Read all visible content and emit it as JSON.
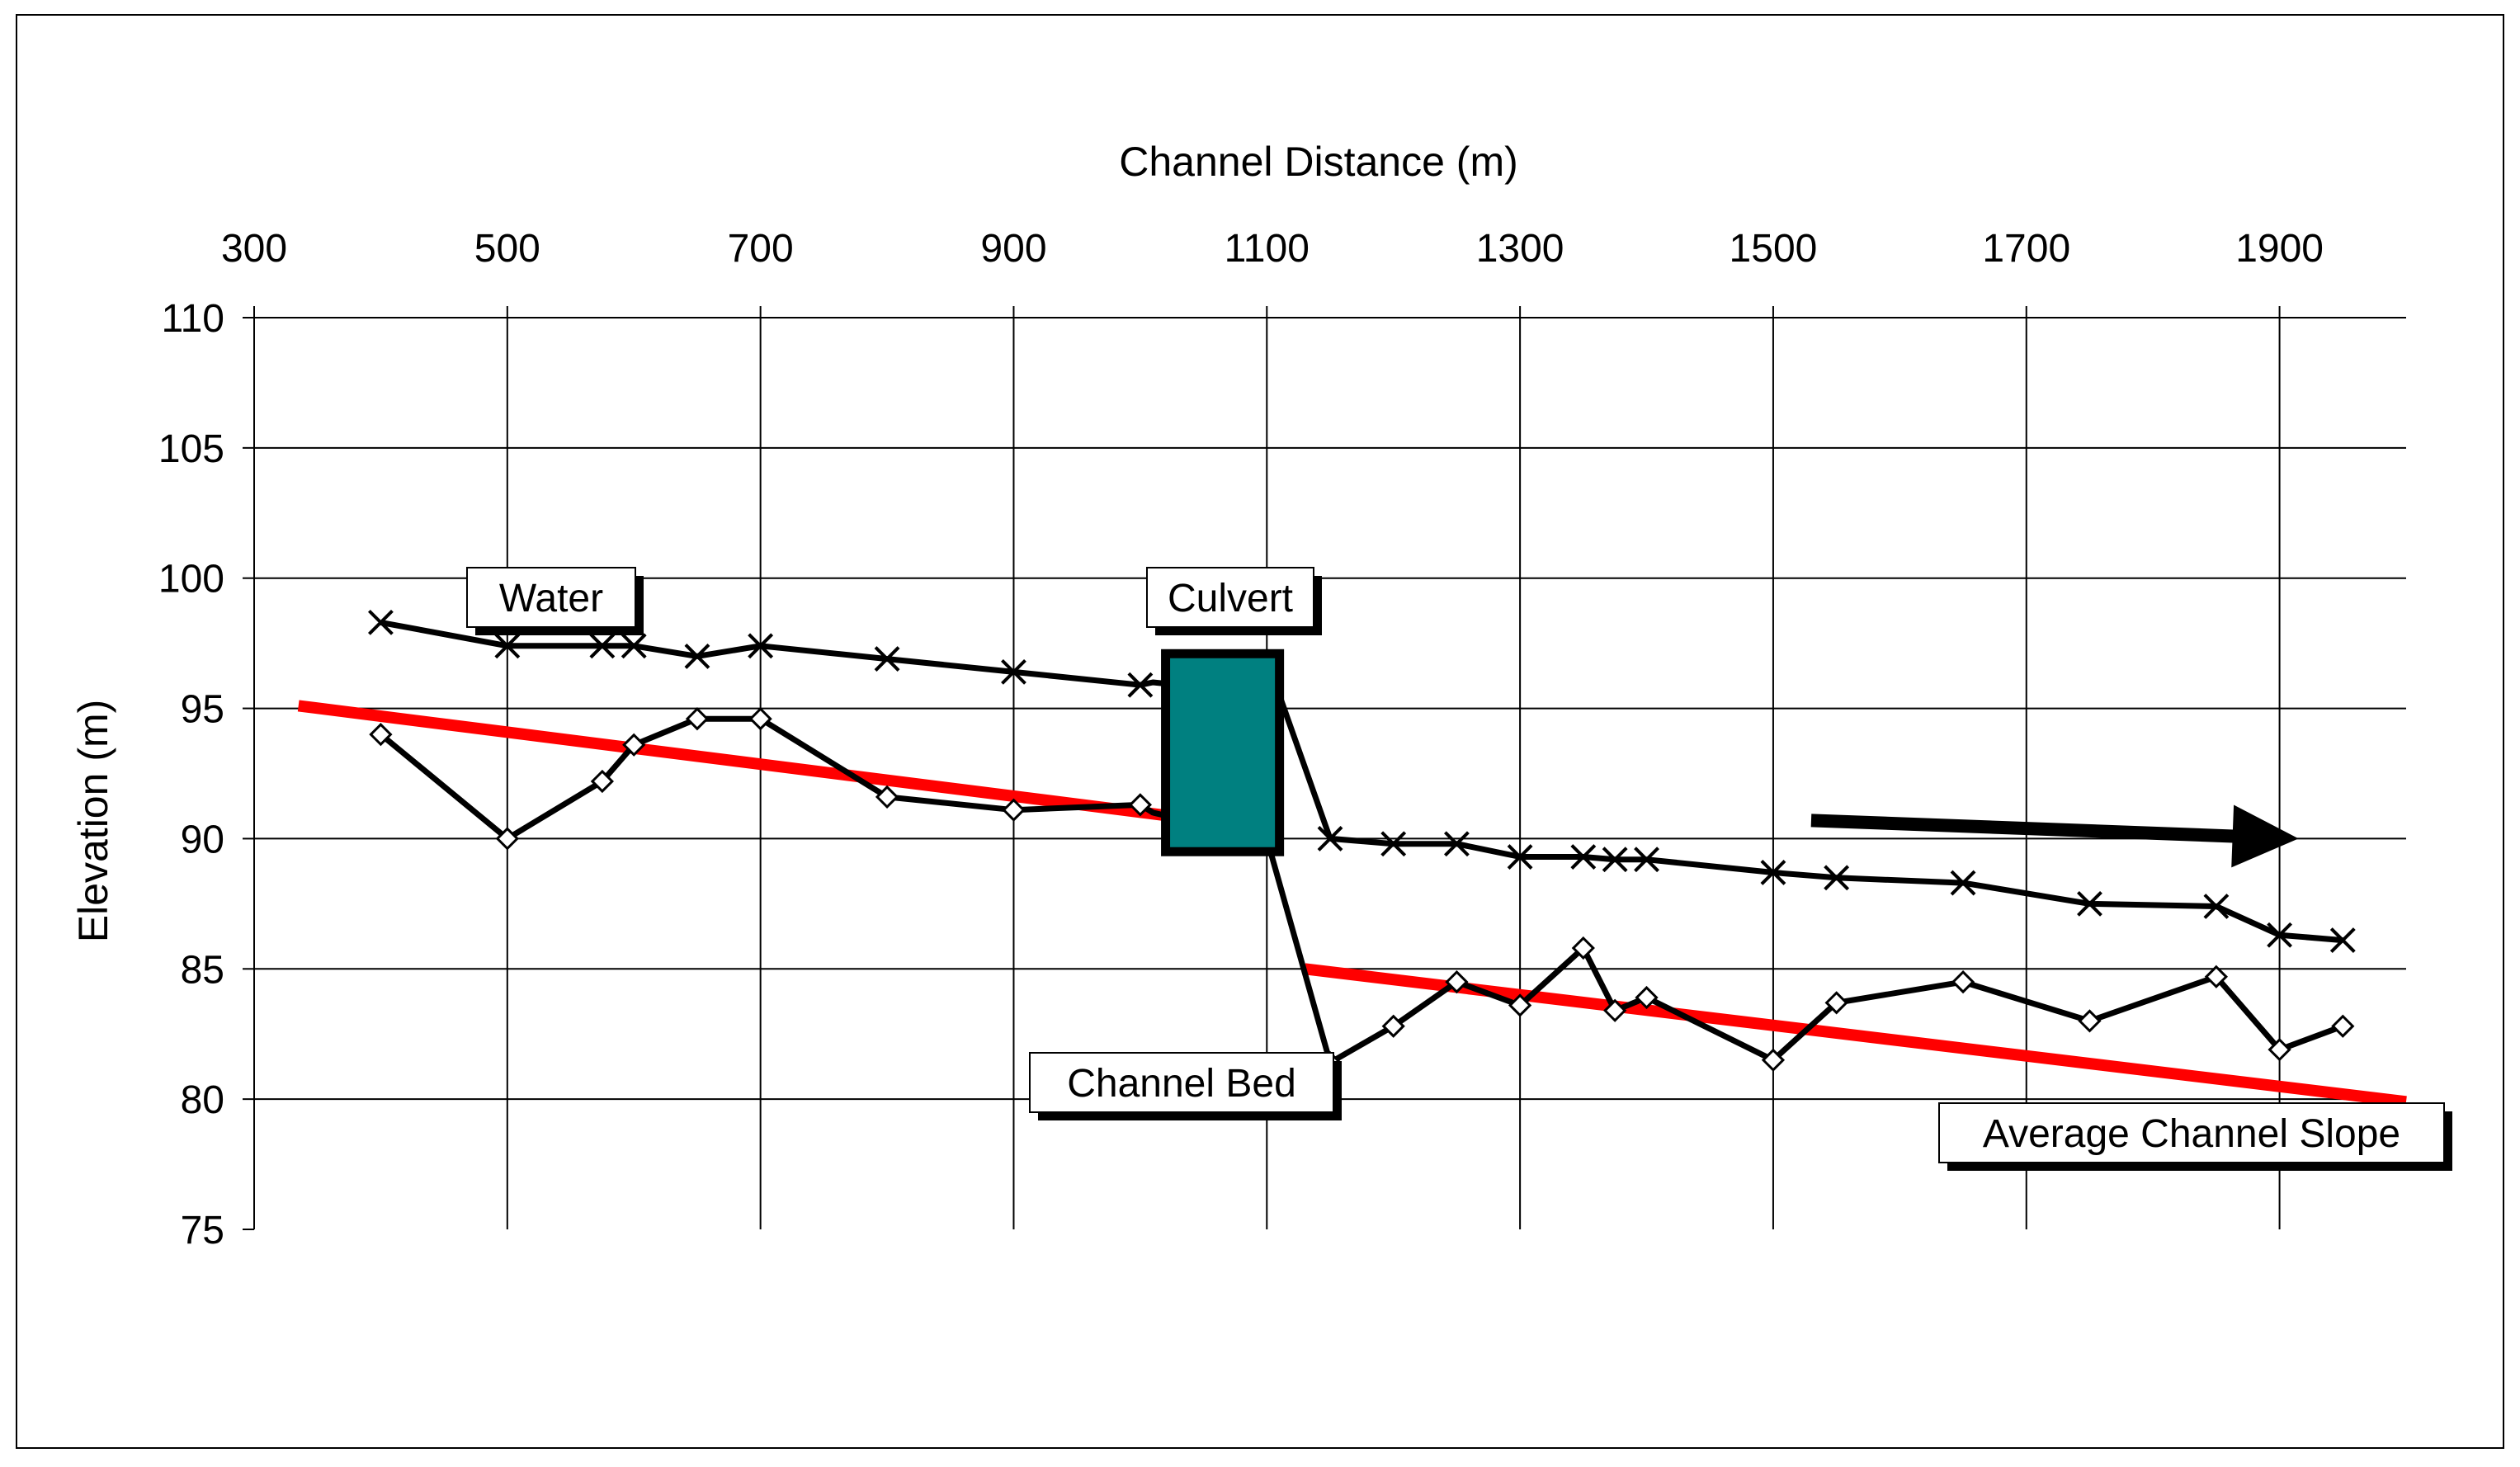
{
  "chart_data": {
    "type": "line",
    "xlabel": "Channel Distance (m)",
    "ylabel": "Elevation (m)",
    "xlim": [
      300,
      2000
    ],
    "ylim": [
      75,
      110
    ],
    "x_ticks": [
      300,
      500,
      700,
      900,
      1100,
      1300,
      1500,
      1700,
      1900
    ],
    "y_ticks": [
      75,
      80,
      85,
      90,
      95,
      100,
      105,
      110
    ],
    "x_axis_position": "top",
    "grid": true,
    "series": [
      {
        "name": "Water",
        "marker": "x",
        "color": "#000000",
        "points": [
          [
            400,
            98.3
          ],
          [
            500,
            97.4
          ],
          [
            575,
            97.4
          ],
          [
            600,
            97.4
          ],
          [
            650,
            97.0
          ],
          [
            700,
            97.4
          ],
          [
            800,
            96.9
          ],
          [
            900,
            96.4
          ],
          [
            1000,
            95.9
          ],
          [
            1150,
            90.0
          ],
          [
            1200,
            89.8
          ],
          [
            1250,
            89.8
          ],
          [
            1300,
            89.3
          ],
          [
            1350,
            89.3
          ],
          [
            1375,
            89.2
          ],
          [
            1400,
            89.2
          ],
          [
            1500,
            88.7
          ],
          [
            1550,
            88.5
          ],
          [
            1650,
            88.3
          ],
          [
            1750,
            87.5
          ],
          [
            1850,
            87.4
          ],
          [
            1900,
            86.3
          ],
          [
            1950,
            86.1
          ]
        ],
        "connector": [
          [
            1000,
            95.9
          ],
          [
            1010,
            96.0
          ],
          [
            1110,
            95.5
          ],
          [
            1150,
            90.0
          ]
        ]
      },
      {
        "name": "Channel Bed",
        "marker": "diamond",
        "color": "#000000",
        "points": [
          [
            400,
            94.0
          ],
          [
            500,
            90.0
          ],
          [
            575,
            92.2
          ],
          [
            600,
            93.6
          ],
          [
            650,
            94.6
          ],
          [
            700,
            94.6
          ],
          [
            800,
            91.6
          ],
          [
            900,
            91.1
          ],
          [
            1000,
            91.3
          ],
          [
            1150,
            81.4
          ],
          [
            1200,
            82.8
          ],
          [
            1250,
            84.5
          ],
          [
            1300,
            83.6
          ],
          [
            1350,
            85.8
          ],
          [
            1375,
            83.4
          ],
          [
            1400,
            83.9
          ],
          [
            1500,
            81.5
          ],
          [
            1550,
            83.7
          ],
          [
            1650,
            84.5
          ],
          [
            1750,
            83.0
          ],
          [
            1850,
            84.7
          ],
          [
            1900,
            81.9
          ],
          [
            1950,
            82.8
          ]
        ],
        "connector": [
          [
            1000,
            91.3
          ],
          [
            1010,
            91.0
          ],
          [
            1100,
            90.0
          ],
          [
            1150,
            81.4
          ]
        ]
      }
    ],
    "slope_lines": [
      {
        "label": "Average Channel Slope",
        "color": "#ff0000",
        "from": [
          335,
          95.1
        ],
        "to": [
          1035,
          90.8
        ]
      },
      {
        "label": "Average Channel Slope",
        "color": "#ff0000",
        "from": [
          1130,
          85.0
        ],
        "to": [
          2000,
          79.9
        ]
      }
    ],
    "culvert": {
      "label": "Culvert",
      "color": "#008080",
      "x": [
        1020,
        1110
      ],
      "y": [
        89.5,
        97.1
      ]
    },
    "flow_arrow": {
      "from": [
        1530,
        90.7
      ],
      "to": [
        1915,
        90.0
      ]
    },
    "annotations": [
      {
        "id": "water",
        "text": "Water"
      },
      {
        "id": "culvert",
        "text": "Culvert"
      },
      {
        "id": "channel-bed",
        "text": "Channel Bed"
      },
      {
        "id": "avg-slope",
        "text": "Average Channel Slope"
      }
    ]
  }
}
